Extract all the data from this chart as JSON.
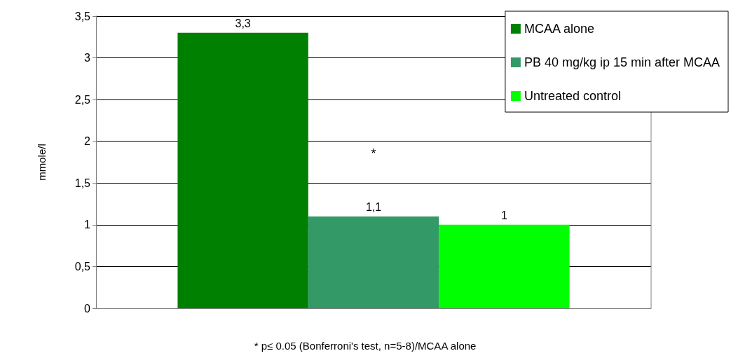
{
  "chart_data": {
    "type": "bar",
    "ylabel": "mmole/l",
    "categories": [
      null
    ],
    "series": [
      {
        "name": "MCAA alone",
        "color": "#008000",
        "values": [
          3.3
        ],
        "value_labels": [
          "3,3"
        ]
      },
      {
        "name": "PB 40 mg/kg ip 15 min after MCAA",
        "color": "#339966",
        "values": [
          1.1
        ],
        "value_labels": [
          "1,1"
        ]
      },
      {
        "name": "Untreated control",
        "color": "#00ff00",
        "values": [
          1
        ],
        "value_labels": [
          "1"
        ]
      }
    ],
    "ylim": [
      0,
      3.5
    ],
    "yticks": [
      0,
      {
        "value": 0.5,
        "label": "0,5"
      },
      1,
      {
        "value": 1.5,
        "label": "1,5"
      },
      2,
      {
        "value": 2.5,
        "label": "2,5"
      },
      3,
      {
        "value": 3.5,
        "label": "3,5"
      }
    ],
    "grid": "y",
    "legend": "top right",
    "annotations": [
      "*",
      "* p≤ 0.05 (Bonferroni's test, n=5-8)/MCAA alone"
    ]
  }
}
